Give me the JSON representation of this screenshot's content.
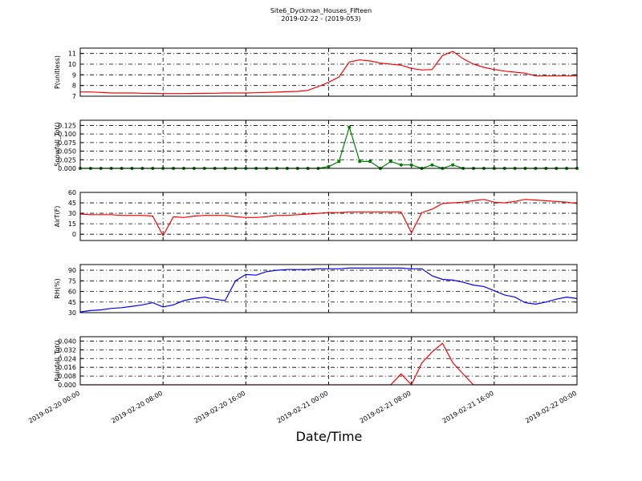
{
  "chart_data": [
    {
      "type": "line",
      "title": "Site6_Dyckman_Houses_Fifteen",
      "subtitle": "2019-02-22 - (2019-053)",
      "ylabel": "P(unitless)",
      "ylim": [
        7,
        11.5
      ],
      "yticks": [
        7,
        8,
        9,
        10,
        11
      ],
      "grid": true,
      "series": [
        {
          "color": "#ff0000",
          "values": [
            7.4,
            7.4,
            7.35,
            7.3,
            7.3,
            7.3,
            7.28,
            7.27,
            7.25,
            7.25,
            7.25,
            7.26,
            7.27,
            7.28,
            7.3,
            7.3,
            7.3,
            7.32,
            7.35,
            7.38,
            7.42,
            7.45,
            7.55,
            7.9,
            8.3,
            8.8,
            10.2,
            10.4,
            10.3,
            10.1,
            10.0,
            9.9,
            9.6,
            9.45,
            9.5,
            10.8,
            11.2,
            10.5,
            10.0,
            9.7,
            9.5,
            9.35,
            9.25,
            9.15,
            8.9,
            8.9,
            8.9,
            8.9,
            8.9
          ]
        }
      ]
    },
    {
      "type": "line",
      "ylabel": "Snowfall_Tot()",
      "ylim": [
        0,
        0.14
      ],
      "yticks": [
        {
          "value": 0,
          "label": "0.000"
        },
        {
          "value": 0.025,
          "label": "0.025"
        },
        {
          "value": 0.05,
          "label": "0.050"
        },
        {
          "value": 0.075,
          "label": "0.075"
        },
        {
          "value": 0.1,
          "label": "0.100"
        },
        {
          "value": 0.125,
          "label": "0.125"
        }
      ],
      "grid": true,
      "series": [
        {
          "color": "#007f00",
          "marker": "o",
          "values": [
            0,
            0,
            0,
            0,
            0,
            0,
            0,
            0,
            0,
            0,
            0,
            0,
            0,
            0,
            0,
            0,
            0,
            0,
            0,
            0,
            0,
            0,
            0,
            0,
            0.005,
            0.02,
            0.12,
            0.02,
            0.02,
            0,
            0.02,
            0.01,
            0.01,
            0,
            0.01,
            0,
            0.01,
            0,
            0,
            0,
            0,
            0,
            0,
            0,
            0,
            0,
            0,
            0,
            0
          ]
        }
      ]
    },
    {
      "type": "line",
      "ylabel": "AirT(F)",
      "ylim": [
        -9,
        60
      ],
      "yticks": [
        0,
        15,
        30,
        45,
        60
      ],
      "grid": true,
      "series": [
        {
          "color": "#ff0000",
          "values": [
            29,
            28,
            28,
            28,
            27,
            27,
            27,
            26,
            -2,
            25,
            24,
            26,
            27,
            27,
            27,
            25,
            24,
            24,
            25,
            27,
            27,
            28,
            29,
            30,
            31,
            31,
            32,
            32,
            32,
            32,
            32,
            32,
            2,
            31,
            36,
            44,
            45,
            46,
            48,
            50,
            46,
            45,
            47,
            50,
            49,
            48,
            47,
            46,
            44
          ]
        }
      ]
    },
    {
      "type": "line",
      "ylabel": "RH(%)",
      "ylim": [
        30,
        98
      ],
      "yticks": [
        30,
        45,
        60,
        75,
        90
      ],
      "grid": true,
      "series": [
        {
          "color": "#0000ff",
          "values": [
            31,
            33,
            34,
            36,
            37,
            39,
            41,
            44,
            38,
            41,
            47,
            50,
            52,
            49,
            47,
            75,
            84,
            83,
            88,
            90,
            91,
            91,
            91,
            92,
            92,
            92,
            93,
            93,
            93,
            93,
            93,
            93,
            92,
            92,
            82,
            77,
            76,
            73,
            69,
            67,
            61,
            55,
            52,
            44,
            42,
            45,
            49,
            52,
            50
          ]
        }
      ]
    },
    {
      "type": "line",
      "ylabel": "Rainfall_Tot()",
      "xlabel": "Date/Time",
      "ylim": [
        0,
        0.044
      ],
      "yticks": [
        {
          "value": 0,
          "label": "0.000"
        },
        {
          "value": 0.008,
          "label": "0.008"
        },
        {
          "value": 0.016,
          "label": "0.016"
        },
        {
          "value": 0.024,
          "label": "0.024"
        },
        {
          "value": 0.032,
          "label": "0.032"
        },
        {
          "value": 0.04,
          "label": "0.040"
        }
      ],
      "grid": true,
      "x": [
        "2019-02-20 00:00",
        "2019-02-20 01:00",
        "2019-02-20 02:00",
        "2019-02-20 03:00",
        "2019-02-20 04:00",
        "2019-02-20 05:00",
        "2019-02-20 06:00",
        "2019-02-20 07:00",
        "2019-02-20 08:00",
        "2019-02-20 09:00",
        "2019-02-20 10:00",
        "2019-02-20 11:00",
        "2019-02-20 12:00",
        "2019-02-20 13:00",
        "2019-02-20 14:00",
        "2019-02-20 15:00",
        "2019-02-20 16:00",
        "2019-02-20 17:00",
        "2019-02-20 18:00",
        "2019-02-20 19:00",
        "2019-02-20 20:00",
        "2019-02-20 21:00",
        "2019-02-20 22:00",
        "2019-02-20 23:00",
        "2019-02-21 00:00",
        "2019-02-21 01:00",
        "2019-02-21 02:00",
        "2019-02-21 03:00",
        "2019-02-21 04:00",
        "2019-02-21 05:00",
        "2019-02-21 06:00",
        "2019-02-21 07:00",
        "2019-02-21 08:00",
        "2019-02-21 09:00",
        "2019-02-21 10:00",
        "2019-02-21 11:00",
        "2019-02-21 12:00",
        "2019-02-21 13:00",
        "2019-02-21 14:00",
        "2019-02-21 15:00",
        "2019-02-21 16:00",
        "2019-02-21 17:00",
        "2019-02-21 18:00",
        "2019-02-21 19:00",
        "2019-02-21 20:00",
        "2019-02-21 21:00",
        "2019-02-21 22:00",
        "2019-02-21 23:00",
        "2019-02-22 00:00"
      ],
      "xlim": [
        "2019-02-20 00:00",
        "2019-02-22 00:00"
      ],
      "xticks": [
        "2019-02-20 00:00",
        "2019-02-20 08:00",
        "2019-02-20 16:00",
        "2019-02-21 00:00",
        "2019-02-21 08:00",
        "2019-02-21 16:00",
        "2019-02-22 00:00"
      ],
      "series": [
        {
          "color": "#ff0000",
          "values": [
            0,
            0,
            0,
            0,
            0,
            0,
            0,
            0,
            0,
            0,
            0,
            0,
            0,
            0,
            0,
            0,
            0,
            0,
            0,
            0,
            0,
            0,
            0,
            0,
            0,
            0,
            0,
            0,
            0,
            0,
            0,
            0.01,
            0,
            0.02,
            0.03,
            0.038,
            0.02,
            0.01,
            0,
            0,
            0,
            0,
            0,
            0,
            0,
            0,
            0,
            0,
            0
          ]
        }
      ]
    }
  ]
}
